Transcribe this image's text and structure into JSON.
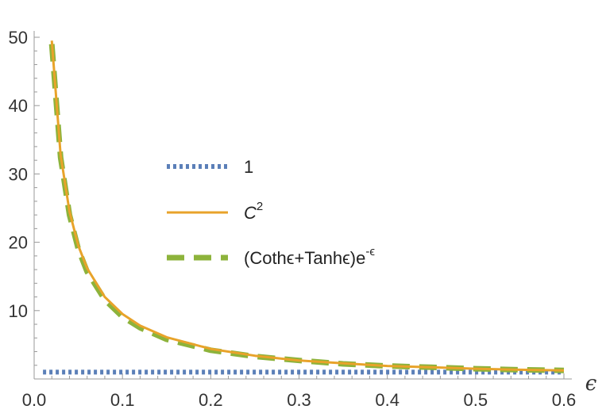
{
  "chart_data": {
    "type": "line",
    "title": "",
    "xlabel": "ϵ",
    "ylabel": "",
    "xlim": [
      0.0,
      0.6
    ],
    "ylim": [
      0,
      50
    ],
    "xticks": [
      "0.0",
      "0.1",
      "0.2",
      "0.3",
      "0.4",
      "0.5",
      "0.6"
    ],
    "yticks": [
      "10",
      "20",
      "30",
      "40",
      "50"
    ],
    "grid": false,
    "legend_position": "center",
    "series": [
      {
        "name": "1",
        "style": "dotted",
        "color": "#5b7fb8",
        "x": [
          0.01,
          0.6
        ],
        "y": [
          1,
          1
        ]
      },
      {
        "name": "C^2",
        "style": "solid",
        "color": "#e8a32a",
        "x": [
          0.02,
          0.03,
          0.04,
          0.05,
          0.06,
          0.08,
          0.1,
          0.12,
          0.15,
          0.2,
          0.25,
          0.3,
          0.35,
          0.4,
          0.45,
          0.5,
          0.55,
          0.6
        ],
        "y": [
          49.5,
          32.8,
          24.5,
          19.5,
          16.2,
          12.0,
          9.5,
          7.8,
          6.1,
          4.4,
          3.4,
          2.7,
          2.3,
          1.9,
          1.7,
          1.5,
          1.35,
          1.25
        ]
      },
      {
        "name": "(Cothϵ+Tanhϵ)e^-ϵ",
        "style": "dashed",
        "color": "#8db33b",
        "x": [
          0.02,
          0.03,
          0.04,
          0.05,
          0.06,
          0.08,
          0.1,
          0.12,
          0.15,
          0.2,
          0.25,
          0.3,
          0.35,
          0.4,
          0.45,
          0.5,
          0.55,
          0.6
        ],
        "y": [
          49.0,
          32.4,
          24.0,
          19.0,
          15.7,
          11.6,
          9.1,
          7.5,
          5.8,
          4.2,
          3.3,
          2.7,
          2.2,
          1.9,
          1.7,
          1.5,
          1.35,
          1.25
        ]
      }
    ],
    "legend": [
      {
        "label": "1"
      },
      {
        "label": "C",
        "sup": "2"
      },
      {
        "label": "(Cothϵ+Tanhϵ)e",
        "sup": "-ϵ"
      }
    ]
  }
}
